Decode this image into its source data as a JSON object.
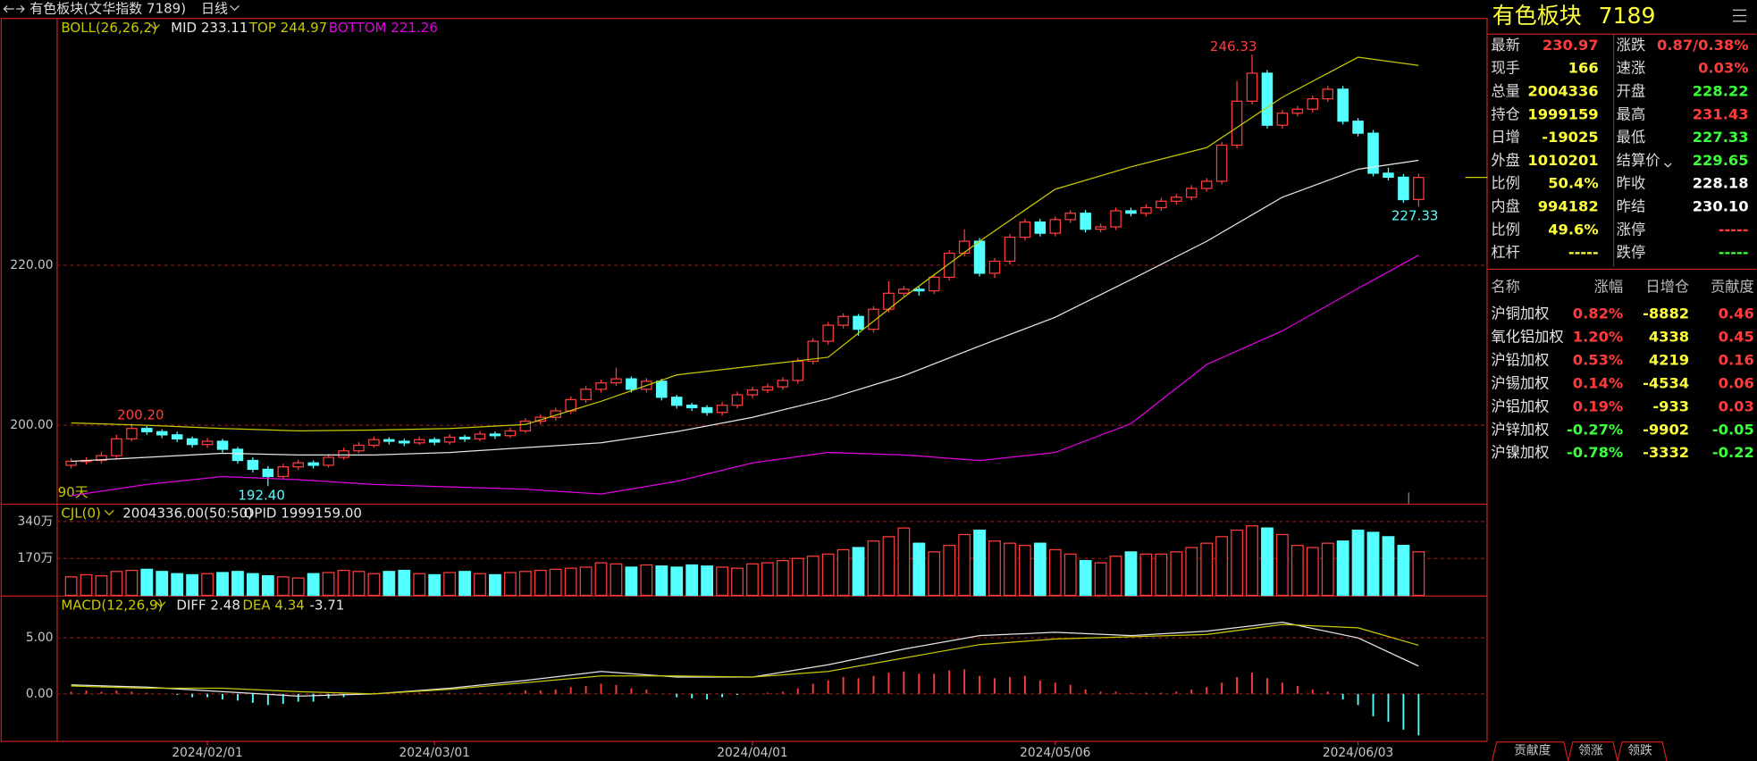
{
  "header": {
    "title": "有色板块(文华指数 7189)",
    "period": "日线"
  },
  "chart_data": [
    {
      "type": "candlestick",
      "legend": [
        "BOLL(26,26,2)",
        "MID 233.11",
        "TOP 244.97",
        "BOTTOM 221.26"
      ],
      "annotations": [
        "246.33",
        "200.20",
        "192.40",
        "227.33",
        "90天"
      ],
      "candles": [
        [
          195.0,
          195.9,
          194.6,
          195.5
        ],
        [
          195.5,
          196.0,
          195.1,
          195.6
        ],
        [
          195.6,
          196.7,
          195.2,
          196.2
        ],
        [
          196.2,
          198.8,
          195.9,
          198.3
        ],
        [
          198.3,
          200.2,
          198.0,
          199.6
        ],
        [
          199.6,
          199.9,
          198.8,
          199.2
        ],
        [
          199.2,
          199.5,
          198.4,
          198.8
        ],
        [
          198.8,
          199.2,
          197.9,
          198.3
        ],
        [
          198.3,
          198.6,
          197.2,
          197.6
        ],
        [
          197.6,
          198.4,
          197.2,
          198.0
        ],
        [
          198.0,
          198.3,
          196.6,
          197.0
        ],
        [
          197.0,
          197.3,
          195.2,
          195.6
        ],
        [
          195.6,
          196.0,
          194.1,
          194.5
        ],
        [
          194.5,
          194.9,
          192.4,
          193.6
        ],
        [
          193.6,
          195.2,
          193.3,
          194.8
        ],
        [
          194.8,
          195.7,
          194.4,
          195.3
        ],
        [
          195.3,
          195.6,
          194.6,
          195.0
        ],
        [
          195.0,
          196.4,
          194.7,
          196.0
        ],
        [
          196.0,
          197.2,
          195.7,
          196.8
        ],
        [
          196.8,
          197.9,
          196.5,
          197.5
        ],
        [
          197.5,
          198.6,
          197.2,
          198.2
        ],
        [
          198.2,
          198.5,
          197.6,
          198.0
        ],
        [
          198.0,
          198.3,
          197.4,
          197.8
        ],
        [
          197.8,
          198.6,
          197.5,
          198.2
        ],
        [
          198.2,
          198.5,
          197.5,
          197.9
        ],
        [
          197.9,
          198.9,
          197.6,
          198.5
        ],
        [
          198.5,
          198.8,
          197.9,
          198.3
        ],
        [
          198.3,
          199.3,
          198.0,
          198.9
        ],
        [
          198.9,
          199.2,
          198.3,
          198.7
        ],
        [
          198.7,
          199.7,
          198.4,
          199.3
        ],
        [
          199.3,
          200.9,
          199.0,
          200.5
        ],
        [
          200.5,
          201.4,
          200.1,
          201.0
        ],
        [
          201.0,
          202.2,
          200.6,
          201.8
        ],
        [
          201.8,
          203.6,
          201.4,
          203.2
        ],
        [
          203.2,
          204.9,
          202.8,
          204.5
        ],
        [
          204.5,
          205.7,
          204.1,
          205.3
        ],
        [
          205.3,
          207.2,
          204.9,
          205.8
        ],
        [
          205.8,
          206.1,
          204.1,
          204.5
        ],
        [
          204.5,
          205.9,
          204.1,
          205.5
        ],
        [
          205.5,
          205.8,
          203.1,
          203.5
        ],
        [
          203.5,
          203.8,
          202.1,
          202.5
        ],
        [
          202.5,
          202.8,
          201.8,
          202.2
        ],
        [
          202.2,
          202.5,
          201.2,
          201.6
        ],
        [
          201.6,
          202.9,
          201.2,
          202.5
        ],
        [
          202.5,
          204.2,
          202.1,
          203.8
        ],
        [
          203.8,
          204.8,
          203.4,
          204.4
        ],
        [
          204.4,
          205.2,
          204.0,
          204.8
        ],
        [
          204.8,
          206.0,
          204.4,
          205.6
        ],
        [
          205.6,
          208.4,
          205.2,
          208.0
        ],
        [
          208.0,
          210.9,
          207.6,
          210.5
        ],
        [
          210.5,
          212.9,
          210.1,
          212.5
        ],
        [
          212.5,
          214.0,
          212.1,
          213.6
        ],
        [
          213.6,
          213.9,
          211.2,
          212.0
        ],
        [
          212.0,
          214.9,
          211.6,
          214.5
        ],
        [
          214.5,
          218.0,
          214.1,
          216.5
        ],
        [
          216.5,
          217.4,
          216.1,
          217.0
        ],
        [
          217.0,
          217.3,
          216.2,
          216.8
        ],
        [
          216.8,
          218.9,
          216.4,
          218.5
        ],
        [
          218.5,
          221.9,
          218.1,
          221.5
        ],
        [
          221.5,
          224.5,
          221.1,
          223.0
        ],
        [
          223.0,
          223.4,
          218.6,
          219.0
        ],
        [
          219.0,
          220.9,
          218.4,
          220.5
        ],
        [
          220.5,
          223.9,
          220.1,
          223.5
        ],
        [
          223.5,
          225.8,
          223.1,
          225.4
        ],
        [
          225.4,
          225.8,
          223.6,
          224.0
        ],
        [
          224.0,
          226.1,
          223.6,
          225.7
        ],
        [
          225.7,
          226.9,
          225.3,
          226.5
        ],
        [
          226.5,
          226.9,
          224.1,
          224.5
        ],
        [
          224.5,
          225.2,
          224.1,
          224.8
        ],
        [
          224.8,
          227.2,
          224.4,
          226.8
        ],
        [
          226.8,
          227.2,
          226.1,
          226.5
        ],
        [
          226.5,
          227.6,
          226.1,
          227.2
        ],
        [
          227.2,
          228.4,
          226.8,
          228.0
        ],
        [
          228.0,
          228.9,
          227.6,
          228.5
        ],
        [
          228.5,
          230.0,
          228.1,
          229.6
        ],
        [
          229.6,
          230.9,
          229.2,
          230.5
        ],
        [
          230.5,
          235.4,
          230.1,
          235.0
        ],
        [
          235.0,
          243.0,
          234.6,
          240.5
        ],
        [
          240.5,
          246.33,
          240.1,
          244.0
        ],
        [
          244.0,
          244.4,
          237.1,
          237.5
        ],
        [
          237.5,
          239.4,
          237.1,
          239.0
        ],
        [
          239.0,
          239.9,
          238.6,
          239.5
        ],
        [
          239.5,
          241.2,
          239.1,
          240.8
        ],
        [
          240.8,
          242.4,
          240.4,
          242.0
        ],
        [
          242.0,
          242.4,
          237.6,
          238.0
        ],
        [
          238.0,
          238.4,
          236.1,
          236.5
        ],
        [
          236.5,
          236.9,
          231.1,
          231.5
        ],
        [
          231.5,
          232.2,
          230.6,
          231.0
        ],
        [
          231.0,
          231.4,
          227.8,
          228.2
        ],
        [
          228.22,
          231.43,
          227.33,
          230.97
        ]
      ],
      "up_color": "#ff3c3c",
      "down_color": "#54ffff",
      "series": [
        {
          "color": "#e6e6e6",
          "x": [
            0,
            5,
            10,
            15,
            20,
            25,
            30,
            35,
            40,
            45,
            50,
            55,
            60,
            65,
            70,
            75,
            80,
            85,
            89
          ],
          "values": [
            195.5,
            196.0,
            196.5,
            196.3,
            196.3,
            196.6,
            197.2,
            197.8,
            199.2,
            201.0,
            203.3,
            206.2,
            209.9,
            213.5,
            218.2,
            223.0,
            228.5,
            232.0,
            233.11
          ]
        },
        {
          "color": "#c8c800",
          "x": [
            0,
            5,
            10,
            15,
            20,
            25,
            30,
            35,
            40,
            45,
            50,
            55,
            60,
            65,
            70,
            75,
            80,
            85,
            89
          ],
          "values": [
            200.3,
            200.0,
            199.6,
            199.3,
            199.4,
            199.6,
            200.1,
            203.0,
            206.3,
            207.4,
            208.5,
            216.0,
            223.0,
            229.5,
            232.3,
            234.7,
            241.0,
            246.0,
            244.97
          ]
        },
        {
          "color": "#e000e0",
          "x": [
            0,
            5,
            10,
            15,
            20,
            25,
            30,
            35,
            40,
            45,
            50,
            55,
            60,
            65,
            70,
            75,
            80,
            85,
            89
          ],
          "values": [
            191.2,
            192.6,
            193.6,
            193.2,
            192.6,
            192.3,
            192.0,
            191.4,
            193.0,
            195.3,
            196.6,
            196.3,
            195.6,
            196.6,
            200.2,
            207.6,
            211.8,
            217.1,
            221.26
          ]
        }
      ],
      "xlim": [
        -0.96,
        93.56
      ],
      "xticks": [
        {
          "value": 9,
          "label": "2024/02/01"
        },
        {
          "value": 24,
          "label": "2024/03/01"
        },
        {
          "value": 45,
          "label": "2024/04/01"
        },
        {
          "value": 65,
          "label": "2024/05/06"
        },
        {
          "value": 85,
          "label": "2024/06/03"
        }
      ],
      "ylim": [
        190.21,
        250.63
      ],
      "yticks": [
        {
          "value": 200,
          "label": "200.00"
        },
        {
          "value": 220,
          "label": "220.00"
        }
      ],
      "grid": true
    },
    {
      "type": "bar",
      "legend": [
        "CJL(0)",
        "2004336.00(50:50)",
        "OPID 1999159.00"
      ],
      "values": [
        85,
        95,
        90,
        110,
        115,
        120,
        110,
        100,
        95,
        100,
        105,
        110,
        100,
        90,
        85,
        80,
        100,
        105,
        115,
        110,
        100,
        110,
        115,
        100,
        95,
        105,
        110,
        100,
        95,
        105,
        110,
        115,
        120,
        125,
        130,
        150,
        145,
        130,
        140,
        135,
        130,
        140,
        135,
        130,
        125,
        145,
        150,
        160,
        170,
        180,
        190,
        210,
        220,
        250,
        270,
        310,
        240,
        200,
        230,
        280,
        300,
        250,
        240,
        230,
        240,
        210,
        190,
        160,
        150,
        180,
        200,
        190,
        190,
        200,
        220,
        240,
        270,
        300,
        320,
        310,
        280,
        230,
        220,
        240,
        250,
        300,
        290,
        270,
        230,
        200.43
      ],
      "ylim": [
        0,
        412
      ],
      "yticks": [
        {
          "value": 170,
          "label": "170万"
        },
        {
          "value": 340,
          "label": "340万"
        }
      ],
      "grid": true
    },
    {
      "type": "macd",
      "legend": [
        "MACD(12,26,9)",
        "DIFF 2.48",
        "DEA 4.34",
        "-3.71"
      ],
      "values": [
        0.2,
        0.3,
        0.2,
        0.3,
        0.2,
        0.1,
        0.0,
        -0.1,
        -0.3,
        -0.3,
        -0.5,
        -0.6,
        -0.8,
        -1.0,
        -0.9,
        -0.7,
        -0.7,
        -0.4,
        -0.3,
        -0.1,
        0.1,
        0.1,
        0.0,
        0.1,
        0.0,
        0.1,
        0.0,
        0.1,
        0.0,
        0.1,
        0.3,
        0.3,
        0.4,
        0.6,
        0.7,
        0.9,
        0.8,
        0.5,
        0.4,
        0.0,
        -0.3,
        -0.4,
        -0.5,
        -0.3,
        -0.1,
        0.0,
        0.1,
        0.2,
        0.5,
        0.9,
        1.2,
        1.5,
        1.4,
        1.6,
        1.9,
        2.0,
        1.8,
        1.8,
        2.1,
        2.2,
        1.6,
        1.4,
        1.5,
        1.6,
        1.2,
        1.0,
        0.8,
        0.4,
        0.2,
        0.2,
        0.1,
        0.1,
        0.1,
        0.2,
        0.4,
        0.6,
        1.0,
        1.5,
        1.9,
        1.4,
        1.0,
        0.7,
        0.4,
        0.2,
        -0.5,
        -1.0,
        -2.0,
        -2.5,
        -3.2,
        -3.71
      ],
      "series": [
        {
          "color": "#e6e6e6",
          "x": [
            0,
            5,
            10,
            15,
            20,
            25,
            30,
            35,
            40,
            45,
            50,
            55,
            60,
            65,
            70,
            75,
            80,
            85,
            89
          ],
          "values": [
            0.8,
            0.6,
            0.2,
            -0.2,
            0.0,
            0.5,
            1.2,
            2.0,
            1.5,
            1.5,
            2.6,
            4.0,
            5.2,
            5.5,
            5.2,
            5.6,
            6.4,
            5.0,
            2.48
          ]
        },
        {
          "color": "#c8c800",
          "x": [
            0,
            5,
            10,
            15,
            20,
            25,
            30,
            35,
            40,
            45,
            50,
            55,
            60,
            65,
            70,
            75,
            80,
            85,
            89
          ],
          "values": [
            0.7,
            0.5,
            0.5,
            0.2,
            0.0,
            0.4,
            1.0,
            1.6,
            1.6,
            1.5,
            2.0,
            3.2,
            4.4,
            4.9,
            5.1,
            5.3,
            6.2,
            5.9,
            4.34
          ]
        }
      ],
      "ylim": [
        -4.2,
        8.7
      ],
      "yticks": [
        {
          "value": 0,
          "label": "0.00"
        },
        {
          "value": 5,
          "label": "5.00"
        }
      ],
      "grid": true
    }
  ],
  "quote": {
    "name": "有色板块",
    "code": "7189",
    "rows": [
      [
        {
          "label": "最新",
          "value": "230.97",
          "color": "#ff3c3c"
        },
        {
          "label": "涨跌",
          "value": "0.87/0.38%",
          "color": "#ff3c3c"
        }
      ],
      [
        {
          "label": "现手",
          "value": "166",
          "color": "#ffff3c"
        },
        {
          "label": "速涨",
          "value": "0.03%",
          "color": "#ff3c3c"
        }
      ],
      [
        {
          "label": "总量",
          "value": "2004336",
          "color": "#ffff3c"
        },
        {
          "label": "开盘",
          "value": "228.22",
          "color": "#3cff3c"
        }
      ],
      [
        {
          "label": "持仓",
          "value": "1999159",
          "color": "#ffff3c"
        },
        {
          "label": "最高",
          "value": "231.43",
          "color": "#ff3c3c"
        }
      ],
      [
        {
          "label": "日增",
          "value": "-19025",
          "color": "#ffff3c"
        },
        {
          "label": "最低",
          "value": "227.33",
          "color": "#3cff3c"
        }
      ],
      [
        {
          "label": "外盘",
          "value": "1010201",
          "color": "#ffff3c"
        },
        {
          "label": "结算价",
          "value": "229.65",
          "color": "#3cff3c"
        }
      ],
      [
        {
          "label": "比例",
          "value": "50.4%",
          "color": "#ffff3c"
        },
        {
          "label": "昨收",
          "value": "228.18",
          "color": "#ffffff"
        }
      ],
      [
        {
          "label": "内盘",
          "value": "994182",
          "color": "#ffff3c"
        },
        {
          "label": "昨结",
          "value": "230.10",
          "color": "#ffffff"
        }
      ],
      [
        {
          "label": "比例",
          "value": "49.6%",
          "color": "#ffff3c"
        },
        {
          "label": "涨停",
          "value": "-----",
          "color": "#ff3c3c"
        }
      ],
      [
        {
          "label": "杠杆",
          "value": "-----",
          "color": "#ffff3c"
        },
        {
          "label": "跌停",
          "value": "-----",
          "color": "#3cff3c"
        }
      ]
    ]
  },
  "components": {
    "headers": [
      "名称",
      "涨幅",
      "日增仓",
      "贡献度"
    ],
    "rows": [
      [
        "沪铜加权",
        "0.82%",
        "-8882",
        "0.46"
      ],
      [
        "氧化铝加权",
        "1.20%",
        "4338",
        "0.45"
      ],
      [
        "沪铅加权",
        "0.53%",
        "4219",
        "0.16"
      ],
      [
        "沪锡加权",
        "0.14%",
        "-4534",
        "0.06"
      ],
      [
        "沪铝加权",
        "0.19%",
        "-933",
        "0.03"
      ],
      [
        "沪锌加权",
        "-0.27%",
        "-9902",
        "-0.05"
      ],
      [
        "沪镍加权",
        "-0.78%",
        "-3332",
        "-0.22"
      ]
    ]
  },
  "tabs": [
    "贡献度",
    "领涨",
    "领跌"
  ]
}
